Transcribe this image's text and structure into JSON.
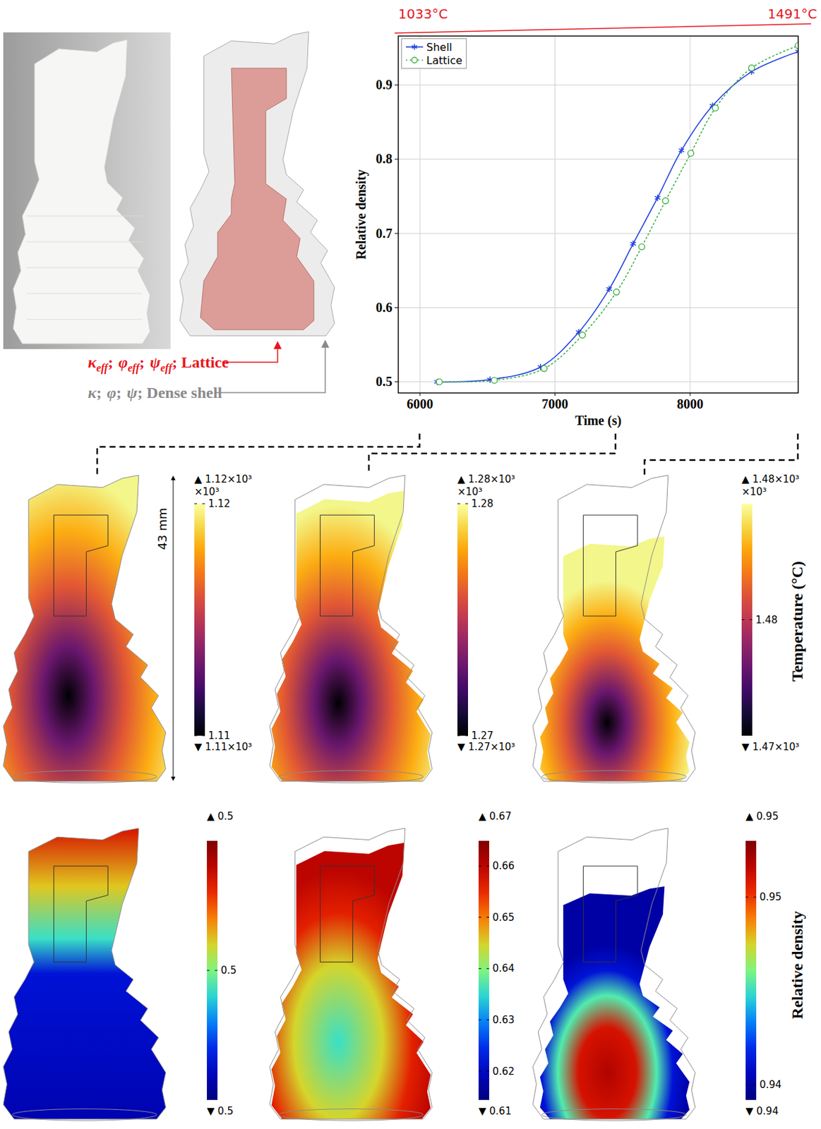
{
  "chart_data": {
    "type": "line",
    "xlabel": "Time (s)",
    "ylabel": "Relative density",
    "xlim": [
      5840,
      8800
    ],
    "xticks": [
      6000,
      7000,
      8000
    ],
    "ylim": [
      0.485,
      0.966
    ],
    "yticks": [
      0.5,
      0.6,
      0.7,
      0.8,
      0.9
    ],
    "grid": true,
    "legend": "top-left",
    "series": [
      {
        "name": "Shell",
        "color": "#1f3fe0",
        "marker": "asterisk",
        "line_style": "solid",
        "x": [
          6128,
          6519,
          6893,
          7176,
          7401,
          7578,
          7759,
          7936,
          8166,
          8455,
          8800
        ],
        "values": [
          0.5,
          0.503,
          0.52,
          0.567,
          0.625,
          0.686,
          0.748,
          0.812,
          0.872,
          0.918,
          0.945
        ]
      },
      {
        "name": "Lattice",
        "color": "#3cb043",
        "marker": "circle",
        "line_style": "dotted",
        "x": [
          6144,
          6551,
          6920,
          7203,
          7455,
          7642,
          7818,
          8005,
          8187,
          8455,
          8800
        ],
        "values": [
          0.5,
          0.502,
          0.518,
          0.563,
          0.621,
          0.682,
          0.744,
          0.808,
          0.869,
          0.923,
          0.953
        ]
      }
    ],
    "annotations": [
      {
        "text": "1033°C",
        "color": "#e8141c"
      },
      {
        "text": "1491°C",
        "color": "#e8141c"
      }
    ]
  },
  "figure": {
    "labels": {
      "lattice": {
        "symbols": [
          {
            "base": "κ",
            "sub": "eff"
          },
          {
            "base": "φ",
            "sub": "eff"
          },
          {
            "base": "ψ",
            "sub": "eff"
          }
        ],
        "separator": ";",
        "text": "Lattice",
        "color": "#e8141c"
      },
      "shell": {
        "symbols": [
          {
            "base": "κ"
          },
          {
            "base": "φ"
          },
          {
            "base": "ψ"
          }
        ],
        "separator": ";",
        "text": "Dense shell",
        "color": "#8a8a8a"
      }
    },
    "snapshot_times": [
      6000,
      7450,
      8800
    ],
    "dimension": "43 mm",
    "temperature": {
      "title": "Temperature (°C)",
      "panels": [
        {
          "max_label": "▲ 1.12×10³",
          "multiplier": "×10³",
          "min_label": "▼ 1.11×10³",
          "range": [
            1.11,
            1.12
          ],
          "ticks": [
            1.11,
            1.12
          ]
        },
        {
          "max_label": "▲ 1.28×10³",
          "multiplier": "×10³",
          "min_label": "▼ 1.27×10³",
          "range": [
            1.27,
            1.28
          ],
          "ticks": [
            1.27,
            1.28
          ]
        },
        {
          "max_label": "▲ 1.48×10³",
          "multiplier": "×10³",
          "min_label": "▼ 1.47×10³",
          "range": [
            1.472,
            1.488
          ],
          "ticks": [
            1.48
          ]
        }
      ]
    },
    "density": {
      "title": "Relative density",
      "panels": [
        {
          "max_label": "▲ 0.5",
          "min_label": "▼ 0.5",
          "range": [
            0.499,
            0.501
          ],
          "ticks": [
            0.5
          ]
        },
        {
          "max_label": "▲ 0.67",
          "min_label": "▼ 0.61",
          "range": [
            0.6144,
            0.6649
          ],
          "ticks": [
            0.62,
            0.63,
            0.64,
            0.65,
            0.66
          ]
        },
        {
          "max_label": "▲ 0.95",
          "min_label": "▼ 0.94",
          "range": [
            0.9392,
            0.953
          ],
          "ticks": [
            0.94,
            0.95
          ]
        }
      ]
    }
  }
}
